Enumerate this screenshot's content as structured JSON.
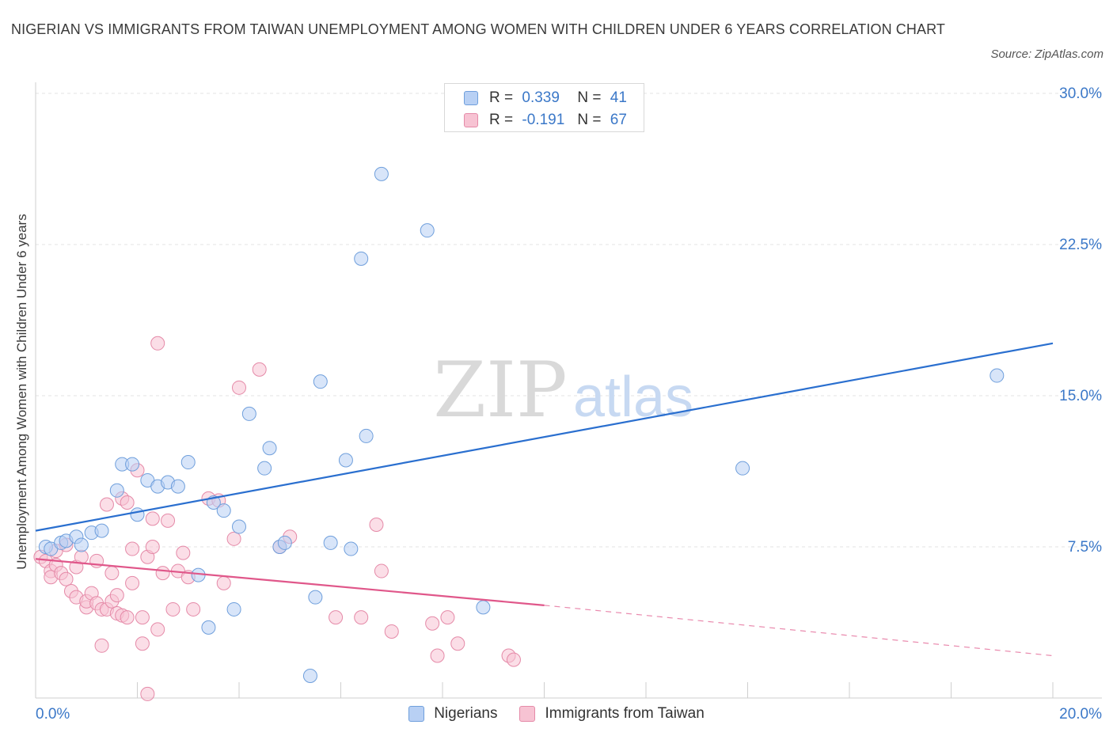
{
  "title": "NIGERIAN VS IMMIGRANTS FROM TAIWAN UNEMPLOYMENT AMONG WOMEN WITH CHILDREN UNDER 6 YEARS CORRELATION CHART",
  "source": "Source: ZipAtlas.com",
  "watermark": {
    "zip": "ZIP",
    "atlas": "atlas"
  },
  "legend": {
    "r_label": "R =",
    "n_label": "N =",
    "series1": {
      "r": "0.339",
      "n": "41"
    },
    "series2": {
      "r": "-0.191",
      "n": "67"
    }
  },
  "colors": {
    "blue_fill": "#b8d0f4",
    "blue_stroke": "#6f9fdc",
    "blue_line": "#2a6fcf",
    "pink_fill": "#f7c3d3",
    "pink_stroke": "#e58aa8",
    "pink_line": "#e0578a",
    "axis_text": "#3b78c8",
    "grid": "#e3e3e3"
  },
  "chart_data": {
    "type": "scatter",
    "title": "NIGERIAN VS IMMIGRANTS FROM TAIWAN UNEMPLOYMENT AMONG WOMEN WITH CHILDREN UNDER 6 YEARS CORRELATION CHART",
    "xlabel": "",
    "ylabel": "Unemployment Among Women with Children Under 6 years",
    "xlim": [
      0,
      20
    ],
    "ylim": [
      0,
      30
    ],
    "x_tick_labels": [
      "0.0%",
      "20.0%"
    ],
    "y_ticks": [
      7.5,
      15.0,
      22.5,
      30.0
    ],
    "y_tick_labels": [
      "7.5%",
      "15.0%",
      "22.5%",
      "30.0%"
    ],
    "grid": true,
    "legend_position": "top-center",
    "series": [
      {
        "name": "Nigerians",
        "r": 0.339,
        "n": 41,
        "trend": {
          "x": [
            0,
            20
          ],
          "y": [
            8.3,
            17.6
          ]
        },
        "points": [
          [
            0.2,
            7.5
          ],
          [
            0.3,
            7.4
          ],
          [
            0.5,
            7.7
          ],
          [
            0.6,
            7.8
          ],
          [
            0.8,
            8.0
          ],
          [
            0.9,
            7.6
          ],
          [
            1.1,
            8.2
          ],
          [
            1.3,
            8.3
          ],
          [
            1.6,
            10.3
          ],
          [
            1.7,
            11.6
          ],
          [
            1.9,
            11.6
          ],
          [
            2.0,
            9.1
          ],
          [
            2.2,
            10.8
          ],
          [
            2.4,
            10.5
          ],
          [
            2.6,
            10.7
          ],
          [
            2.8,
            10.5
          ],
          [
            3.0,
            11.7
          ],
          [
            3.2,
            6.1
          ],
          [
            3.4,
            3.5
          ],
          [
            3.5,
            9.7
          ],
          [
            3.7,
            9.3
          ],
          [
            3.9,
            4.4
          ],
          [
            4.0,
            8.5
          ],
          [
            4.2,
            14.1
          ],
          [
            4.5,
            11.4
          ],
          [
            4.6,
            12.4
          ],
          [
            4.8,
            7.5
          ],
          [
            4.9,
            7.7
          ],
          [
            5.4,
            1.1
          ],
          [
            5.5,
            5.0
          ],
          [
            5.6,
            15.7
          ],
          [
            5.8,
            7.7
          ],
          [
            6.1,
            11.8
          ],
          [
            6.2,
            7.4
          ],
          [
            6.4,
            21.8
          ],
          [
            6.5,
            13.0
          ],
          [
            6.8,
            26.0
          ],
          [
            7.7,
            23.2
          ],
          [
            8.8,
            4.5
          ],
          [
            13.9,
            11.4
          ],
          [
            18.9,
            16.0
          ]
        ]
      },
      {
        "name": "Immigrants from Taiwan",
        "r": -0.191,
        "n": 67,
        "trend": {
          "x": [
            0,
            10
          ],
          "y": [
            6.9,
            4.6
          ]
        },
        "trend_dashed": {
          "x": [
            10,
            20
          ],
          "y": [
            4.6,
            2.1
          ]
        },
        "points": [
          [
            0.1,
            7.0
          ],
          [
            0.2,
            6.8
          ],
          [
            0.3,
            6.3
          ],
          [
            0.3,
            6.0
          ],
          [
            0.4,
            7.3
          ],
          [
            0.4,
            6.6
          ],
          [
            0.5,
            6.2
          ],
          [
            0.6,
            7.6
          ],
          [
            0.6,
            5.9
          ],
          [
            0.7,
            5.3
          ],
          [
            0.8,
            5.0
          ],
          [
            0.8,
            6.5
          ],
          [
            0.9,
            7.0
          ],
          [
            1.0,
            4.5
          ],
          [
            1.0,
            4.8
          ],
          [
            1.1,
            5.2
          ],
          [
            1.2,
            4.7
          ],
          [
            1.2,
            6.8
          ],
          [
            1.3,
            4.4
          ],
          [
            1.3,
            2.6
          ],
          [
            1.4,
            4.4
          ],
          [
            1.4,
            9.6
          ],
          [
            1.5,
            4.8
          ],
          [
            1.5,
            6.2
          ],
          [
            1.6,
            4.2
          ],
          [
            1.6,
            5.1
          ],
          [
            1.7,
            4.1
          ],
          [
            1.7,
            9.9
          ],
          [
            1.8,
            4.0
          ],
          [
            1.8,
            9.7
          ],
          [
            1.9,
            7.4
          ],
          [
            1.9,
            5.7
          ],
          [
            2.0,
            11.3
          ],
          [
            2.1,
            2.7
          ],
          [
            2.1,
            4.0
          ],
          [
            2.2,
            7.0
          ],
          [
            2.3,
            7.5
          ],
          [
            2.3,
            8.9
          ],
          [
            2.4,
            17.6
          ],
          [
            2.4,
            3.4
          ],
          [
            2.5,
            6.2
          ],
          [
            2.6,
            8.8
          ],
          [
            2.7,
            4.4
          ],
          [
            2.8,
            6.3
          ],
          [
            2.9,
            7.2
          ],
          [
            3.0,
            6.0
          ],
          [
            3.1,
            4.4
          ],
          [
            3.4,
            9.9
          ],
          [
            3.6,
            9.8
          ],
          [
            3.7,
            5.7
          ],
          [
            3.9,
            7.9
          ],
          [
            4.0,
            15.4
          ],
          [
            4.4,
            16.3
          ],
          [
            4.8,
            7.5
          ],
          [
            5.0,
            8.0
          ],
          [
            5.9,
            4.0
          ],
          [
            6.4,
            4.0
          ],
          [
            6.7,
            8.6
          ],
          [
            6.8,
            6.3
          ],
          [
            7.0,
            3.3
          ],
          [
            7.8,
            3.7
          ],
          [
            7.9,
            2.1
          ],
          [
            8.1,
            4.0
          ],
          [
            8.3,
            2.7
          ],
          [
            9.3,
            2.1
          ],
          [
            9.4,
            1.9
          ],
          [
            2.2,
            0.2
          ]
        ]
      }
    ],
    "legend_entries": [
      "Nigerians",
      "Immigrants from Taiwan"
    ]
  }
}
